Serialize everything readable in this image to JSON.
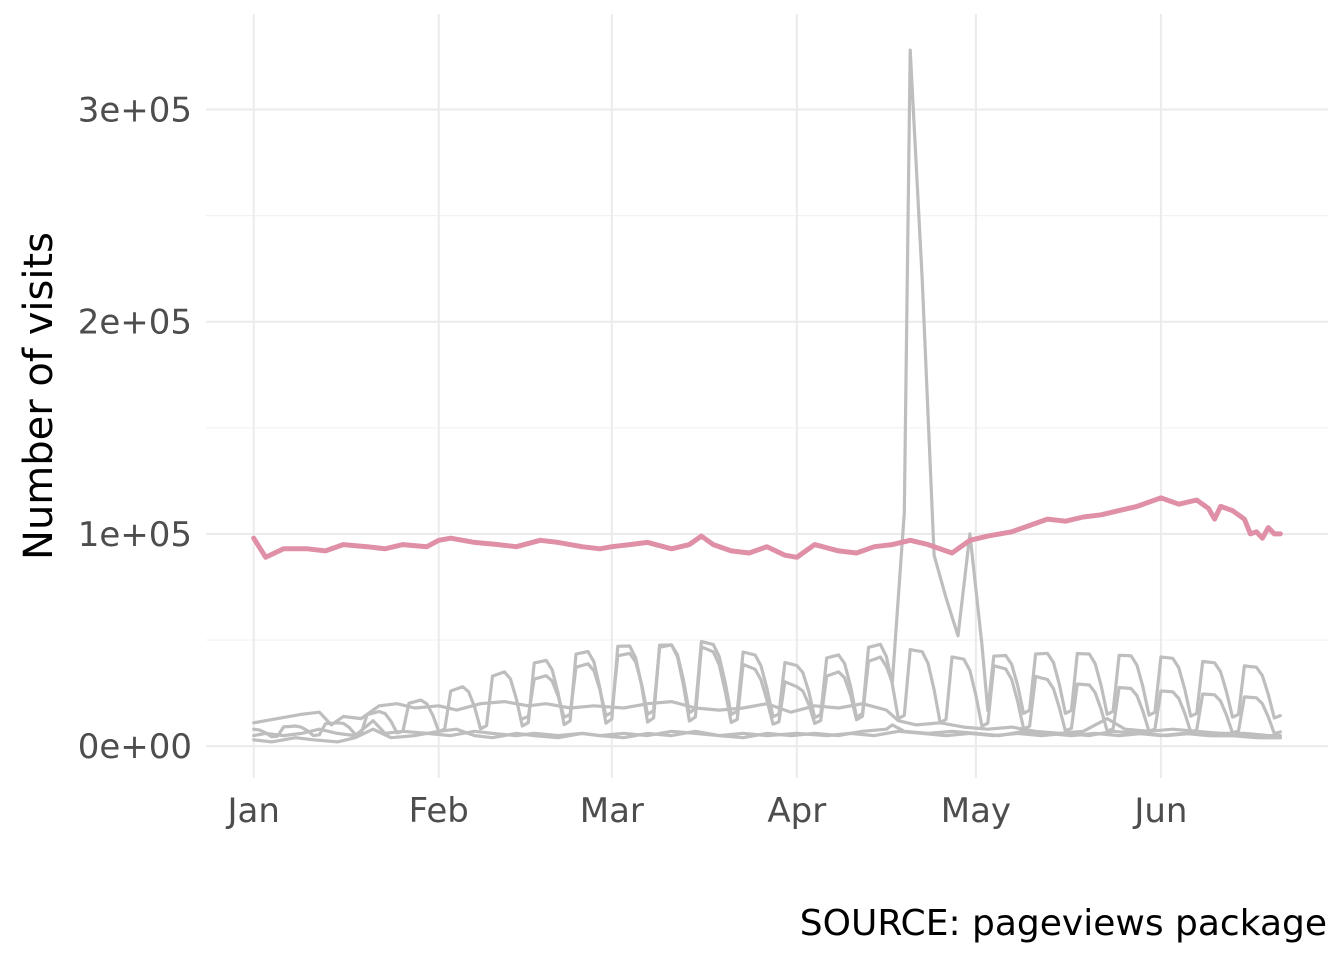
{
  "chart_data": {
    "type": "line",
    "title": "",
    "xlabel": "",
    "ylabel": "Number of visits",
    "caption": "SOURCE: pageviews package",
    "x_range": [
      "2016-01-01",
      "2016-06-21"
    ],
    "x_tick_dates": [
      "2016-01-01",
      "2016-02-01",
      "2016-03-01",
      "2016-04-01",
      "2016-05-01",
      "2016-06-01"
    ],
    "x_tick_labels": [
      "Jan",
      "Feb",
      "Mar",
      "Apr",
      "May",
      "Jun"
    ],
    "ylim": [
      -15000,
      345000
    ],
    "y_ticks": [
      0,
      100000,
      200000,
      300000
    ],
    "y_tick_labels": [
      "0e+00",
      "1e+05",
      "2e+05",
      "3e+05"
    ],
    "grid": true,
    "legend": "none",
    "colors": {
      "highlight": "#df8fa6",
      "background": "#bebebe"
    },
    "series": [
      {
        "highlight": true,
        "points": [
          [
            "2016-01-01",
            98000
          ],
          [
            "2016-01-03",
            89000
          ],
          [
            "2016-01-06",
            93000
          ],
          [
            "2016-01-10",
            93000
          ],
          [
            "2016-01-13",
            92000
          ],
          [
            "2016-01-16",
            95000
          ],
          [
            "2016-01-20",
            94000
          ],
          [
            "2016-01-23",
            93000
          ],
          [
            "2016-01-26",
            95000
          ],
          [
            "2016-01-30",
            94000
          ],
          [
            "2016-02-01",
            97000
          ],
          [
            "2016-02-03",
            98000
          ],
          [
            "2016-02-07",
            96000
          ],
          [
            "2016-02-11",
            95000
          ],
          [
            "2016-02-14",
            94000
          ],
          [
            "2016-02-18",
            97000
          ],
          [
            "2016-02-21",
            96000
          ],
          [
            "2016-02-25",
            94000
          ],
          [
            "2016-02-28",
            93000
          ],
          [
            "2016-03-01",
            94000
          ],
          [
            "2016-03-04",
            95000
          ],
          [
            "2016-03-07",
            96000
          ],
          [
            "2016-03-11",
            93000
          ],
          [
            "2016-03-14",
            95000
          ],
          [
            "2016-03-16",
            99000
          ],
          [
            "2016-03-18",
            95000
          ],
          [
            "2016-03-21",
            92000
          ],
          [
            "2016-03-24",
            91000
          ],
          [
            "2016-03-27",
            94000
          ],
          [
            "2016-03-30",
            90000
          ],
          [
            "2016-04-01",
            89000
          ],
          [
            "2016-04-04",
            95000
          ],
          [
            "2016-04-08",
            92000
          ],
          [
            "2016-04-11",
            91000
          ],
          [
            "2016-04-14",
            94000
          ],
          [
            "2016-04-17",
            95000
          ],
          [
            "2016-04-20",
            97000
          ],
          [
            "2016-04-23",
            95000
          ],
          [
            "2016-04-27",
            91000
          ],
          [
            "2016-04-30",
            97000
          ],
          [
            "2016-05-03",
            99000
          ],
          [
            "2016-05-07",
            101000
          ],
          [
            "2016-05-10",
            104000
          ],
          [
            "2016-05-13",
            107000
          ],
          [
            "2016-05-16",
            106000
          ],
          [
            "2016-05-19",
            108000
          ],
          [
            "2016-05-22",
            109000
          ],
          [
            "2016-05-25",
            111000
          ],
          [
            "2016-05-28",
            113000
          ],
          [
            "2016-06-01",
            117000
          ],
          [
            "2016-06-04",
            114000
          ],
          [
            "2016-06-07",
            116000
          ],
          [
            "2016-06-09",
            112000
          ],
          [
            "2016-06-10",
            107000
          ],
          [
            "2016-06-11",
            113000
          ],
          [
            "2016-06-13",
            111000
          ],
          [
            "2016-06-15",
            107000
          ],
          [
            "2016-06-16",
            100000
          ],
          [
            "2016-06-17",
            101000
          ],
          [
            "2016-06-18",
            98000
          ],
          [
            "2016-06-19",
            103000
          ],
          [
            "2016-06-20",
            100000
          ],
          [
            "2016-06-21",
            100000
          ]
        ]
      },
      {
        "highlight": false,
        "points": [
          [
            "2016-01-01",
            5000
          ],
          [
            "2016-01-03",
            6000
          ],
          [
            "2016-01-06",
            5000
          ],
          [
            "2016-01-09",
            6000
          ],
          [
            "2016-01-12",
            8000
          ],
          [
            "2016-01-15",
            6000
          ],
          [
            "2016-01-18",
            5000
          ],
          [
            "2016-01-21",
            12000
          ],
          [
            "2016-01-23",
            6000
          ],
          [
            "2016-01-26",
            7000
          ],
          [
            "2016-01-30",
            6000
          ],
          [
            "2016-02-03",
            5000
          ],
          [
            "2016-02-07",
            7000
          ],
          [
            "2016-02-10",
            6000
          ],
          [
            "2016-02-14",
            5000
          ],
          [
            "2016-02-17",
            6000
          ],
          [
            "2016-02-21",
            5000
          ],
          [
            "2016-02-25",
            6000
          ],
          [
            "2016-02-28",
            5000
          ],
          [
            "2016-03-03",
            6000
          ],
          [
            "2016-03-07",
            5000
          ],
          [
            "2016-03-11",
            7000
          ],
          [
            "2016-03-15",
            6000
          ],
          [
            "2016-03-19",
            5000
          ],
          [
            "2016-03-23",
            6000
          ],
          [
            "2016-03-27",
            5000
          ],
          [
            "2016-04-01",
            6000
          ],
          [
            "2016-04-06",
            5000
          ],
          [
            "2016-04-10",
            6000
          ],
          [
            "2016-04-14",
            5000
          ],
          [
            "2016-04-18",
            7000
          ],
          [
            "2016-04-22",
            6000
          ],
          [
            "2016-04-26",
            5000
          ],
          [
            "2016-04-30",
            6000
          ],
          [
            "2016-05-04",
            5000
          ],
          [
            "2016-05-08",
            6000
          ],
          [
            "2016-05-12",
            5000
          ],
          [
            "2016-05-16",
            6000
          ],
          [
            "2016-05-20",
            5000
          ],
          [
            "2016-05-24",
            7000
          ],
          [
            "2016-05-28",
            6000
          ],
          [
            "2016-06-01",
            5000
          ],
          [
            "2016-06-05",
            6000
          ],
          [
            "2016-06-09",
            5000
          ],
          [
            "2016-06-13",
            5000
          ],
          [
            "2016-06-17",
            4000
          ],
          [
            "2016-06-21",
            4000
          ]
        ]
      },
      {
        "highlight": false,
        "points": [
          [
            "2016-01-01",
            3000
          ],
          [
            "2016-01-04",
            2000
          ],
          [
            "2016-01-08",
            4000
          ],
          [
            "2016-01-11",
            3000
          ],
          [
            "2016-01-15",
            2000
          ],
          [
            "2016-01-18",
            4000
          ],
          [
            "2016-01-21",
            8000
          ],
          [
            "2016-01-24",
            4000
          ],
          [
            "2016-01-28",
            5000
          ],
          [
            "2016-02-01",
            7000
          ],
          [
            "2016-02-04",
            8000
          ],
          [
            "2016-02-07",
            5000
          ],
          [
            "2016-02-10",
            4000
          ],
          [
            "2016-02-14",
            6000
          ],
          [
            "2016-02-17",
            5000
          ],
          [
            "2016-02-21",
            4000
          ],
          [
            "2016-02-25",
            6000
          ],
          [
            "2016-02-28",
            5000
          ],
          [
            "2016-03-03",
            4000
          ],
          [
            "2016-03-07",
            6000
          ],
          [
            "2016-03-11",
            5000
          ],
          [
            "2016-03-15",
            7000
          ],
          [
            "2016-03-19",
            5000
          ],
          [
            "2016-03-23",
            4000
          ],
          [
            "2016-03-27",
            6000
          ],
          [
            "2016-03-31",
            5000
          ],
          [
            "2016-04-04",
            6000
          ],
          [
            "2016-04-08",
            5000
          ],
          [
            "2016-04-12",
            7000
          ],
          [
            "2016-04-16",
            8000
          ],
          [
            "2016-04-17",
            10000
          ],
          [
            "2016-04-19",
            7000
          ],
          [
            "2016-04-23",
            6000
          ],
          [
            "2016-04-27",
            7000
          ],
          [
            "2016-05-01",
            6000
          ],
          [
            "2016-05-05",
            5000
          ],
          [
            "2016-05-09",
            7000
          ],
          [
            "2016-05-13",
            6000
          ],
          [
            "2016-05-17",
            5000
          ],
          [
            "2016-05-21",
            6000
          ],
          [
            "2016-05-25",
            5000
          ],
          [
            "2016-05-29",
            6000
          ],
          [
            "2016-06-02",
            5000
          ],
          [
            "2016-06-06",
            6000
          ],
          [
            "2016-06-10",
            5000
          ],
          [
            "2016-06-14",
            5000
          ],
          [
            "2016-06-18",
            4000
          ],
          [
            "2016-06-21",
            4000
          ]
        ]
      },
      {
        "highlight": false,
        "points": [
          [
            "2016-01-01",
            11000
          ],
          [
            "2016-01-05",
            13000
          ],
          [
            "2016-01-09",
            15000
          ],
          [
            "2016-01-12",
            16000
          ],
          [
            "2016-01-14",
            10000
          ],
          [
            "2016-01-16",
            14000
          ],
          [
            "2016-01-19",
            13000
          ],
          [
            "2016-01-22",
            19000
          ],
          [
            "2016-01-25",
            20000
          ],
          [
            "2016-01-28",
            18000
          ],
          [
            "2016-02-01",
            19000
          ],
          [
            "2016-02-04",
            17000
          ],
          [
            "2016-02-08",
            20000
          ],
          [
            "2016-02-12",
            21000
          ],
          [
            "2016-02-16",
            19000
          ],
          [
            "2016-02-19",
            20000
          ],
          [
            "2016-02-23",
            18000
          ],
          [
            "2016-02-27",
            19000
          ],
          [
            "2016-03-03",
            18000
          ],
          [
            "2016-03-07",
            20000
          ],
          [
            "2016-03-11",
            21000
          ],
          [
            "2016-03-15",
            18000
          ],
          [
            "2016-03-19",
            17000
          ],
          [
            "2016-03-23",
            18000
          ],
          [
            "2016-03-27",
            20000
          ],
          [
            "2016-03-31",
            16000
          ],
          [
            "2016-04-04",
            19000
          ],
          [
            "2016-04-08",
            18000
          ],
          [
            "2016-04-12",
            20000
          ],
          [
            "2016-04-16",
            17000
          ],
          [
            "2016-04-18",
            12000
          ],
          [
            "2016-04-21",
            10000
          ],
          [
            "2016-04-25",
            11000
          ],
          [
            "2016-04-29",
            9000
          ],
          [
            "2016-05-03",
            8000
          ],
          [
            "2016-05-07",
            9000
          ],
          [
            "2016-05-11",
            7000
          ],
          [
            "2016-05-15",
            6000
          ],
          [
            "2016-05-19",
            7000
          ],
          [
            "2016-05-23",
            13000
          ],
          [
            "2016-05-26",
            8000
          ],
          [
            "2016-05-30",
            7000
          ],
          [
            "2016-06-03",
            8000
          ],
          [
            "2016-06-07",
            7000
          ],
          [
            "2016-06-11",
            6000
          ],
          [
            "2016-06-15",
            6000
          ],
          [
            "2016-06-19",
            5000
          ],
          [
            "2016-06-21",
            5000
          ]
        ]
      },
      {
        "highlight": false,
        "weekly": {
          "start": "2016-01-01",
          "end": "2016-06-21",
          "offset_days": 2,
          "points": [
            [
              "2016-01-01",
              4000,
              8000
            ],
            [
              "2016-01-15",
              5000,
              11000
            ],
            [
              "2016-02-01",
              6000,
              24000
            ],
            [
              "2016-02-15",
              8000,
              38000
            ],
            [
              "2016-03-01",
              9000,
              47000
            ],
            [
              "2016-03-15",
              10000,
              48000
            ],
            [
              "2016-04-01",
              9000,
              28000
            ],
            [
              "2016-04-15",
              12000,
              42000
            ],
            [
              "2016-05-01",
              14000,
              42000
            ],
            [
              "2016-05-15",
              14000,
              44000
            ],
            [
              "2016-06-01",
              13000,
              42000
            ],
            [
              "2016-06-21",
              12000,
              36000
            ]
          ]
        },
        "points": [
          [
            "2016-04-17",
            30000
          ],
          [
            "2016-04-19",
            110000
          ],
          [
            "2016-04-20",
            328000
          ],
          [
            "2016-04-22",
            220000
          ],
          [
            "2016-04-24",
            90000
          ],
          [
            "2016-04-26",
            70000
          ],
          [
            "2016-04-28",
            52000
          ],
          [
            "2016-04-30",
            100000
          ],
          [
            "2016-05-02",
            48000
          ]
        ]
      },
      {
        "highlight": false,
        "weekly": {
          "start": "2016-02-15",
          "end": "2016-06-21",
          "offset_days": 5,
          "points": [
            [
              "2016-02-15",
              12000,
              30000
            ],
            [
              "2016-03-01",
              13000,
              42000
            ],
            [
              "2016-03-15",
              14000,
              50000
            ],
            [
              "2016-04-01",
              12000,
              38000
            ],
            [
              "2016-04-15",
              12000,
              48000
            ],
            [
              "2016-05-01",
              8000,
              40000
            ],
            [
              "2016-05-15",
              6000,
              30000
            ],
            [
              "2016-06-01",
              6000,
              26000
            ],
            [
              "2016-06-21",
              5000,
              22000
            ]
          ]
        }
      }
    ]
  }
}
